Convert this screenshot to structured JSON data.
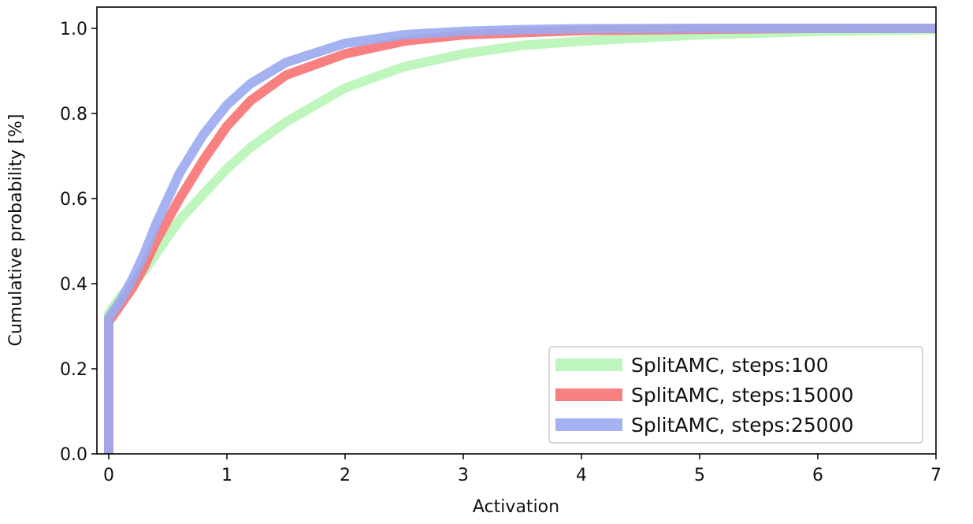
{
  "chart_data": {
    "type": "line",
    "title": "",
    "xlabel": "Activation",
    "ylabel": "Cumulative probability [%]",
    "xlim": [
      -0.1,
      7
    ],
    "ylim": [
      0,
      1.05
    ],
    "xticks": [
      0,
      1,
      2,
      3,
      4,
      5,
      6,
      7
    ],
    "yticks": [
      0.0,
      0.2,
      0.4,
      0.6,
      0.8,
      1.0
    ],
    "xtick_labels": [
      "0",
      "1",
      "2",
      "3",
      "4",
      "5",
      "6",
      "7"
    ],
    "ytick_labels": [
      "0.0",
      "0.2",
      "0.4",
      "0.6",
      "0.8",
      "1.0"
    ],
    "grid": false,
    "legend_position": "bottom-right",
    "series": [
      {
        "name": "SplitAMC, steps:100",
        "color": "#b7f5b7",
        "x": [
          0,
          0,
          0.1,
          0.2,
          0.3,
          0.4,
          0.5,
          0.6,
          0.8,
          1.0,
          1.2,
          1.5,
          2.0,
          2.5,
          3.0,
          3.5,
          4.0,
          5.0,
          6.0,
          7.0
        ],
        "y": [
          0,
          0.33,
          0.37,
          0.4,
          0.43,
          0.47,
          0.51,
          0.55,
          0.61,
          0.67,
          0.72,
          0.78,
          0.86,
          0.91,
          0.94,
          0.96,
          0.97,
          0.985,
          0.993,
          0.997
        ]
      },
      {
        "name": "SplitAMC, steps:15000",
        "color": "#f87272",
        "x": [
          0,
          0,
          0.1,
          0.2,
          0.3,
          0.4,
          0.5,
          0.6,
          0.8,
          1.0,
          1.2,
          1.5,
          2.0,
          2.5,
          3.0,
          3.5,
          4.0,
          5.0,
          6.0,
          7.0
        ],
        "y": [
          0,
          0.31,
          0.35,
          0.39,
          0.44,
          0.5,
          0.55,
          0.6,
          0.69,
          0.77,
          0.83,
          0.89,
          0.94,
          0.97,
          0.985,
          0.99,
          0.995,
          0.998,
          1.0,
          1.0
        ]
      },
      {
        "name": "SplitAMC, steps:25000",
        "color": "#9aaaf0",
        "x": [
          0,
          0,
          0.1,
          0.2,
          0.3,
          0.4,
          0.5,
          0.6,
          0.8,
          1.0,
          1.2,
          1.5,
          2.0,
          2.5,
          3.0,
          3.5,
          4.0,
          5.0,
          6.0,
          7.0
        ],
        "y": [
          0,
          0.32,
          0.36,
          0.41,
          0.47,
          0.54,
          0.6,
          0.66,
          0.75,
          0.82,
          0.87,
          0.92,
          0.965,
          0.985,
          0.993,
          0.997,
          0.999,
          1.0,
          1.0,
          1.0
        ]
      }
    ]
  }
}
